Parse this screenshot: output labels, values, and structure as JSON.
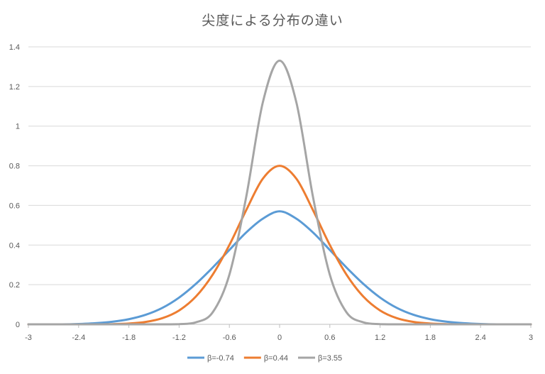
{
  "chart_data": {
    "type": "line",
    "title": "尖度による分布の違い",
    "xlabel": "",
    "ylabel": "",
    "xlim": [
      -3,
      3
    ],
    "ylim": [
      0,
      1.4
    ],
    "x_ticks": [
      "-3",
      "-2.4",
      "-1.8",
      "-1.2",
      "-0.6",
      "0",
      "0.6",
      "1.2",
      "1.8",
      "2.4",
      "3"
    ],
    "y_ticks": [
      "0",
      "0.2",
      "0.4",
      "0.6",
      "0.8",
      "1",
      "1.2",
      "1.4"
    ],
    "grid": "horizontal",
    "legend_position": "bottom",
    "x": [
      -3.0,
      -2.8,
      -2.6,
      -2.4,
      -2.2,
      -2.0,
      -1.8,
      -1.6,
      -1.4,
      -1.2,
      -1.0,
      -0.8,
      -0.6,
      -0.4,
      -0.2,
      0.0,
      0.2,
      0.4,
      0.6,
      0.8,
      1.0,
      1.2,
      1.4,
      1.6,
      1.8,
      2.0,
      2.2,
      2.4,
      2.6,
      2.8,
      3.0
    ],
    "series": [
      {
        "name": "β=-0.74",
        "color": "#5b9bd5",
        "values": [
          0.0,
          0.0,
          0.0,
          0.002,
          0.006,
          0.013,
          0.026,
          0.048,
          0.083,
          0.135,
          0.204,
          0.286,
          0.375,
          0.463,
          0.533,
          0.57,
          0.533,
          0.463,
          0.375,
          0.286,
          0.204,
          0.135,
          0.083,
          0.048,
          0.026,
          0.013,
          0.006,
          0.002,
          0.0,
          0.0,
          0.0
        ]
      },
      {
        "name": "β=0.44",
        "color": "#ed7d31",
        "values": [
          0.0,
          0.0,
          0.0,
          0.0,
          0.0,
          0.001,
          0.004,
          0.012,
          0.031,
          0.07,
          0.14,
          0.25,
          0.4,
          0.575,
          0.735,
          0.8,
          0.735,
          0.575,
          0.4,
          0.25,
          0.14,
          0.07,
          0.031,
          0.012,
          0.004,
          0.001,
          0.0,
          0.0,
          0.0,
          0.0,
          0.0
        ]
      },
      {
        "name": "β=3.55",
        "color": "#a5a5a5",
        "values": [
          0.0,
          0.0,
          0.0,
          0.0,
          0.0,
          0.0,
          0.0,
          0.0,
          0.0,
          0.001,
          0.01,
          0.06,
          0.25,
          0.64,
          1.12,
          1.33,
          1.12,
          0.64,
          0.25,
          0.06,
          0.01,
          0.001,
          0.0,
          0.0,
          0.0,
          0.0,
          0.0,
          0.0,
          0.0,
          0.0,
          0.0
        ]
      }
    ]
  }
}
